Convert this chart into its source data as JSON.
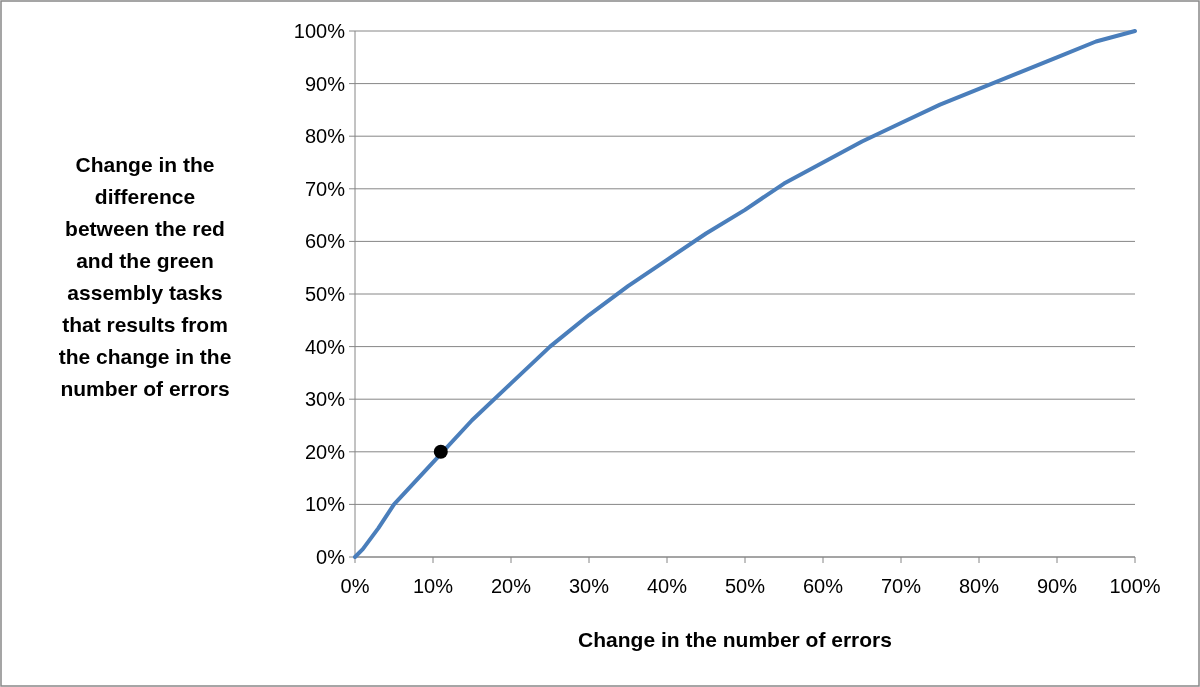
{
  "chart_data": {
    "type": "line",
    "xlabel": "Change in the number of errors",
    "ylabel": "Change in the difference between the red and the green assembly tasks that results from the change in the number of errors",
    "xlim": [
      0,
      100
    ],
    "ylim": [
      0,
      100
    ],
    "xticks": [
      {
        "value": 0,
        "label": "0%"
      },
      {
        "value": 10,
        "label": "10%"
      },
      {
        "value": 20,
        "label": "20%"
      },
      {
        "value": 30,
        "label": "30%"
      },
      {
        "value": 40,
        "label": "40%"
      },
      {
        "value": 50,
        "label": "50%"
      },
      {
        "value": 60,
        "label": "60%"
      },
      {
        "value": 70,
        "label": "70%"
      },
      {
        "value": 80,
        "label": "80%"
      },
      {
        "value": 90,
        "label": "90%"
      },
      {
        "value": 100,
        "label": "100%"
      }
    ],
    "yticks": [
      {
        "value": 0,
        "label": "0%"
      },
      {
        "value": 10,
        "label": "10%"
      },
      {
        "value": 20,
        "label": "20%"
      },
      {
        "value": 30,
        "label": "30%"
      },
      {
        "value": 40,
        "label": "40%"
      },
      {
        "value": 50,
        "label": "50%"
      },
      {
        "value": 60,
        "label": "60%"
      },
      {
        "value": 70,
        "label": "70%"
      },
      {
        "value": 80,
        "label": "80%"
      },
      {
        "value": 90,
        "label": "90%"
      },
      {
        "value": 100,
        "label": "100%"
      }
    ],
    "grid": "y",
    "series": [
      {
        "color": "#4a7ebb",
        "x": [
          0,
          1,
          3,
          5,
          10,
          15,
          20,
          25,
          30,
          35,
          40,
          45,
          50,
          55,
          60,
          65,
          70,
          75,
          80,
          85,
          90,
          95,
          100
        ],
        "values": [
          0,
          1.5,
          5.5,
          10,
          18,
          26,
          33,
          40,
          46,
          51.5,
          56.5,
          61.5,
          66,
          71,
          75,
          79,
          82.5,
          86,
          89,
          92,
          95,
          98,
          100
        ]
      },
      {
        "type": "scatter",
        "color": "#000000",
        "marker": "circle",
        "x": [
          11
        ],
        "values": [
          20
        ]
      }
    ]
  }
}
